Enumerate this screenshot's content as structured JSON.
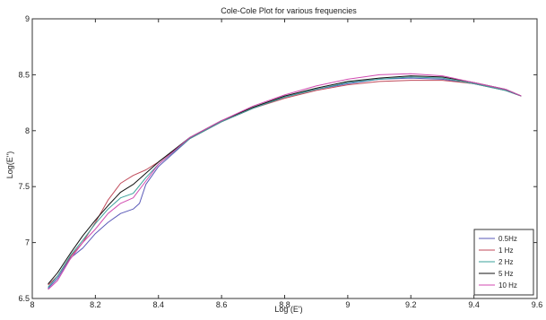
{
  "chart_data": {
    "type": "line",
    "title": "Cole-Cole Plot for various frequencies",
    "xlabel": "Log (E')",
    "ylabel": "Log(E'')",
    "xlim": [
      8,
      9.6
    ],
    "ylim": [
      6.5,
      9
    ],
    "xticks": [
      "8",
      "8.2",
      "8.4",
      "8.6",
      "8.8",
      "9",
      "9.2",
      "9.4",
      "9.6"
    ],
    "yticks": [
      "6.5",
      "7",
      "7.5",
      "8",
      "8.5",
      "9"
    ],
    "grid": false,
    "legend_position": "bottom-right",
    "series": [
      {
        "name": "0.5Hz",
        "color": "#5a5ab8",
        "points": [
          [
            8.05,
            6.59
          ],
          [
            8.08,
            6.68
          ],
          [
            8.12,
            6.86
          ],
          [
            8.16,
            6.95
          ],
          [
            8.2,
            7.08
          ],
          [
            8.24,
            7.18
          ],
          [
            8.28,
            7.26
          ],
          [
            8.32,
            7.3
          ],
          [
            8.34,
            7.35
          ],
          [
            8.36,
            7.52
          ],
          [
            8.4,
            7.68
          ],
          [
            8.5,
            7.93
          ],
          [
            8.6,
            8.08
          ],
          [
            8.7,
            8.2
          ],
          [
            8.8,
            8.3
          ],
          [
            8.9,
            8.37
          ],
          [
            9.0,
            8.42
          ],
          [
            9.1,
            8.46
          ],
          [
            9.2,
            8.47
          ],
          [
            9.3,
            8.46
          ],
          [
            9.4,
            8.42
          ],
          [
            9.5,
            8.36
          ],
          [
            9.55,
            8.31
          ]
        ]
      },
      {
        "name": "1 Hz",
        "color": "#c04a5a",
        "points": [
          [
            8.05,
            6.62
          ],
          [
            8.08,
            6.7
          ],
          [
            8.12,
            6.87
          ],
          [
            8.16,
            7.0
          ],
          [
            8.2,
            7.18
          ],
          [
            8.24,
            7.38
          ],
          [
            8.28,
            7.53
          ],
          [
            8.32,
            7.6
          ],
          [
            8.36,
            7.65
          ],
          [
            8.4,
            7.72
          ],
          [
            8.5,
            7.93
          ],
          [
            8.6,
            8.08
          ],
          [
            8.7,
            8.2
          ],
          [
            8.8,
            8.29
          ],
          [
            8.9,
            8.36
          ],
          [
            9.0,
            8.41
          ],
          [
            9.1,
            8.44
          ],
          [
            9.2,
            8.45
          ],
          [
            9.3,
            8.45
          ],
          [
            9.4,
            8.42
          ],
          [
            9.5,
            8.36
          ],
          [
            9.55,
            8.31
          ]
        ]
      },
      {
        "name": "2 Hz",
        "color": "#3aa09a",
        "points": [
          [
            8.05,
            6.6
          ],
          [
            8.08,
            6.7
          ],
          [
            8.12,
            6.88
          ],
          [
            8.16,
            7.02
          ],
          [
            8.2,
            7.17
          ],
          [
            8.24,
            7.3
          ],
          [
            8.28,
            7.4
          ],
          [
            8.32,
            7.44
          ],
          [
            8.36,
            7.58
          ],
          [
            8.4,
            7.7
          ],
          [
            8.5,
            7.93
          ],
          [
            8.6,
            8.08
          ],
          [
            8.7,
            8.2
          ],
          [
            8.8,
            8.3
          ],
          [
            8.9,
            8.37
          ],
          [
            9.0,
            8.43
          ],
          [
            9.1,
            8.46
          ],
          [
            9.2,
            8.48
          ],
          [
            9.3,
            8.47
          ],
          [
            9.4,
            8.42
          ],
          [
            9.5,
            8.36
          ],
          [
            9.55,
            8.31
          ]
        ]
      },
      {
        "name": "5 Hz",
        "color": "#111111",
        "points": [
          [
            8.05,
            6.63
          ],
          [
            8.08,
            6.73
          ],
          [
            8.12,
            6.9
          ],
          [
            8.16,
            7.06
          ],
          [
            8.2,
            7.2
          ],
          [
            8.24,
            7.33
          ],
          [
            8.28,
            7.45
          ],
          [
            8.32,
            7.52
          ],
          [
            8.36,
            7.62
          ],
          [
            8.4,
            7.72
          ],
          [
            8.5,
            7.94
          ],
          [
            8.6,
            8.09
          ],
          [
            8.7,
            8.21
          ],
          [
            8.8,
            8.31
          ],
          [
            8.9,
            8.38
          ],
          [
            9.0,
            8.44
          ],
          [
            9.1,
            8.47
          ],
          [
            9.2,
            8.49
          ],
          [
            9.3,
            8.48
          ],
          [
            9.4,
            8.43
          ],
          [
            9.5,
            8.37
          ],
          [
            9.55,
            8.31
          ]
        ]
      },
      {
        "name": "10 Hz",
        "color": "#d04ab0",
        "points": [
          [
            8.05,
            6.58
          ],
          [
            8.08,
            6.66
          ],
          [
            8.12,
            6.85
          ],
          [
            8.16,
            7.0
          ],
          [
            8.2,
            7.12
          ],
          [
            8.24,
            7.26
          ],
          [
            8.28,
            7.35
          ],
          [
            8.32,
            7.4
          ],
          [
            8.36,
            7.55
          ],
          [
            8.4,
            7.7
          ],
          [
            8.5,
            7.94
          ],
          [
            8.6,
            8.09
          ],
          [
            8.7,
            8.22
          ],
          [
            8.8,
            8.32
          ],
          [
            8.9,
            8.4
          ],
          [
            9.0,
            8.46
          ],
          [
            9.1,
            8.5
          ],
          [
            9.2,
            8.51
          ],
          [
            9.3,
            8.49
          ],
          [
            9.4,
            8.43
          ],
          [
            9.5,
            8.37
          ],
          [
            9.55,
            8.31
          ]
        ]
      }
    ]
  }
}
